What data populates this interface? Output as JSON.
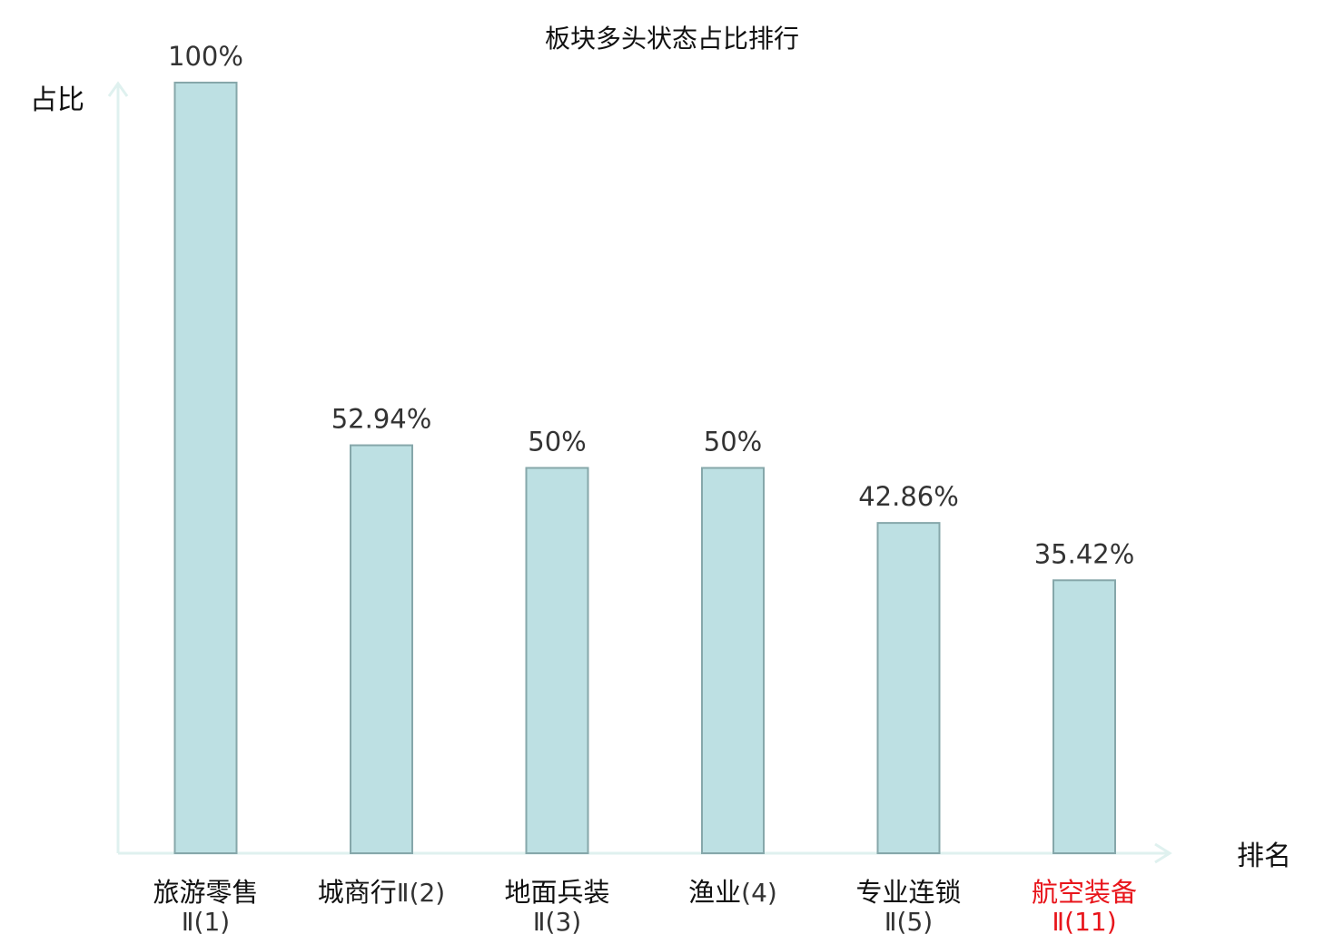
{
  "chart_data": {
    "type": "bar",
    "title": "板块多头状态占比排行",
    "xlabel": "排名",
    "ylabel": "占比",
    "ylim": [
      0,
      100
    ],
    "grid": false,
    "categories": [
      {
        "name": "旅游零售",
        "suffix": "Ⅱ(1)",
        "highlight": false
      },
      {
        "name": "城商行",
        "suffix": "Ⅱ(2)",
        "highlight": false
      },
      {
        "name": "地面兵装",
        "suffix": "Ⅱ(3)",
        "highlight": false
      },
      {
        "name": "渔业",
        "suffix": "(4)",
        "highlight": false
      },
      {
        "name": "专业连锁",
        "suffix": "Ⅱ(5)",
        "highlight": false
      },
      {
        "name": "航空装备",
        "suffix": "Ⅱ(11)",
        "highlight": true
      }
    ],
    "values": [
      100,
      52.94,
      50,
      50,
      42.86,
      35.42
    ],
    "value_labels": [
      "100%",
      "52.94%",
      "50%",
      "50%",
      "42.86%",
      "35.42%"
    ],
    "colors": {
      "bar_fill": "#bde0e3",
      "bar_stroke": "#86a7aa",
      "axis": "#dff1ef",
      "label": "#333333",
      "category": "#111111",
      "suffix": "#333333",
      "highlight": "#e8151b"
    }
  }
}
